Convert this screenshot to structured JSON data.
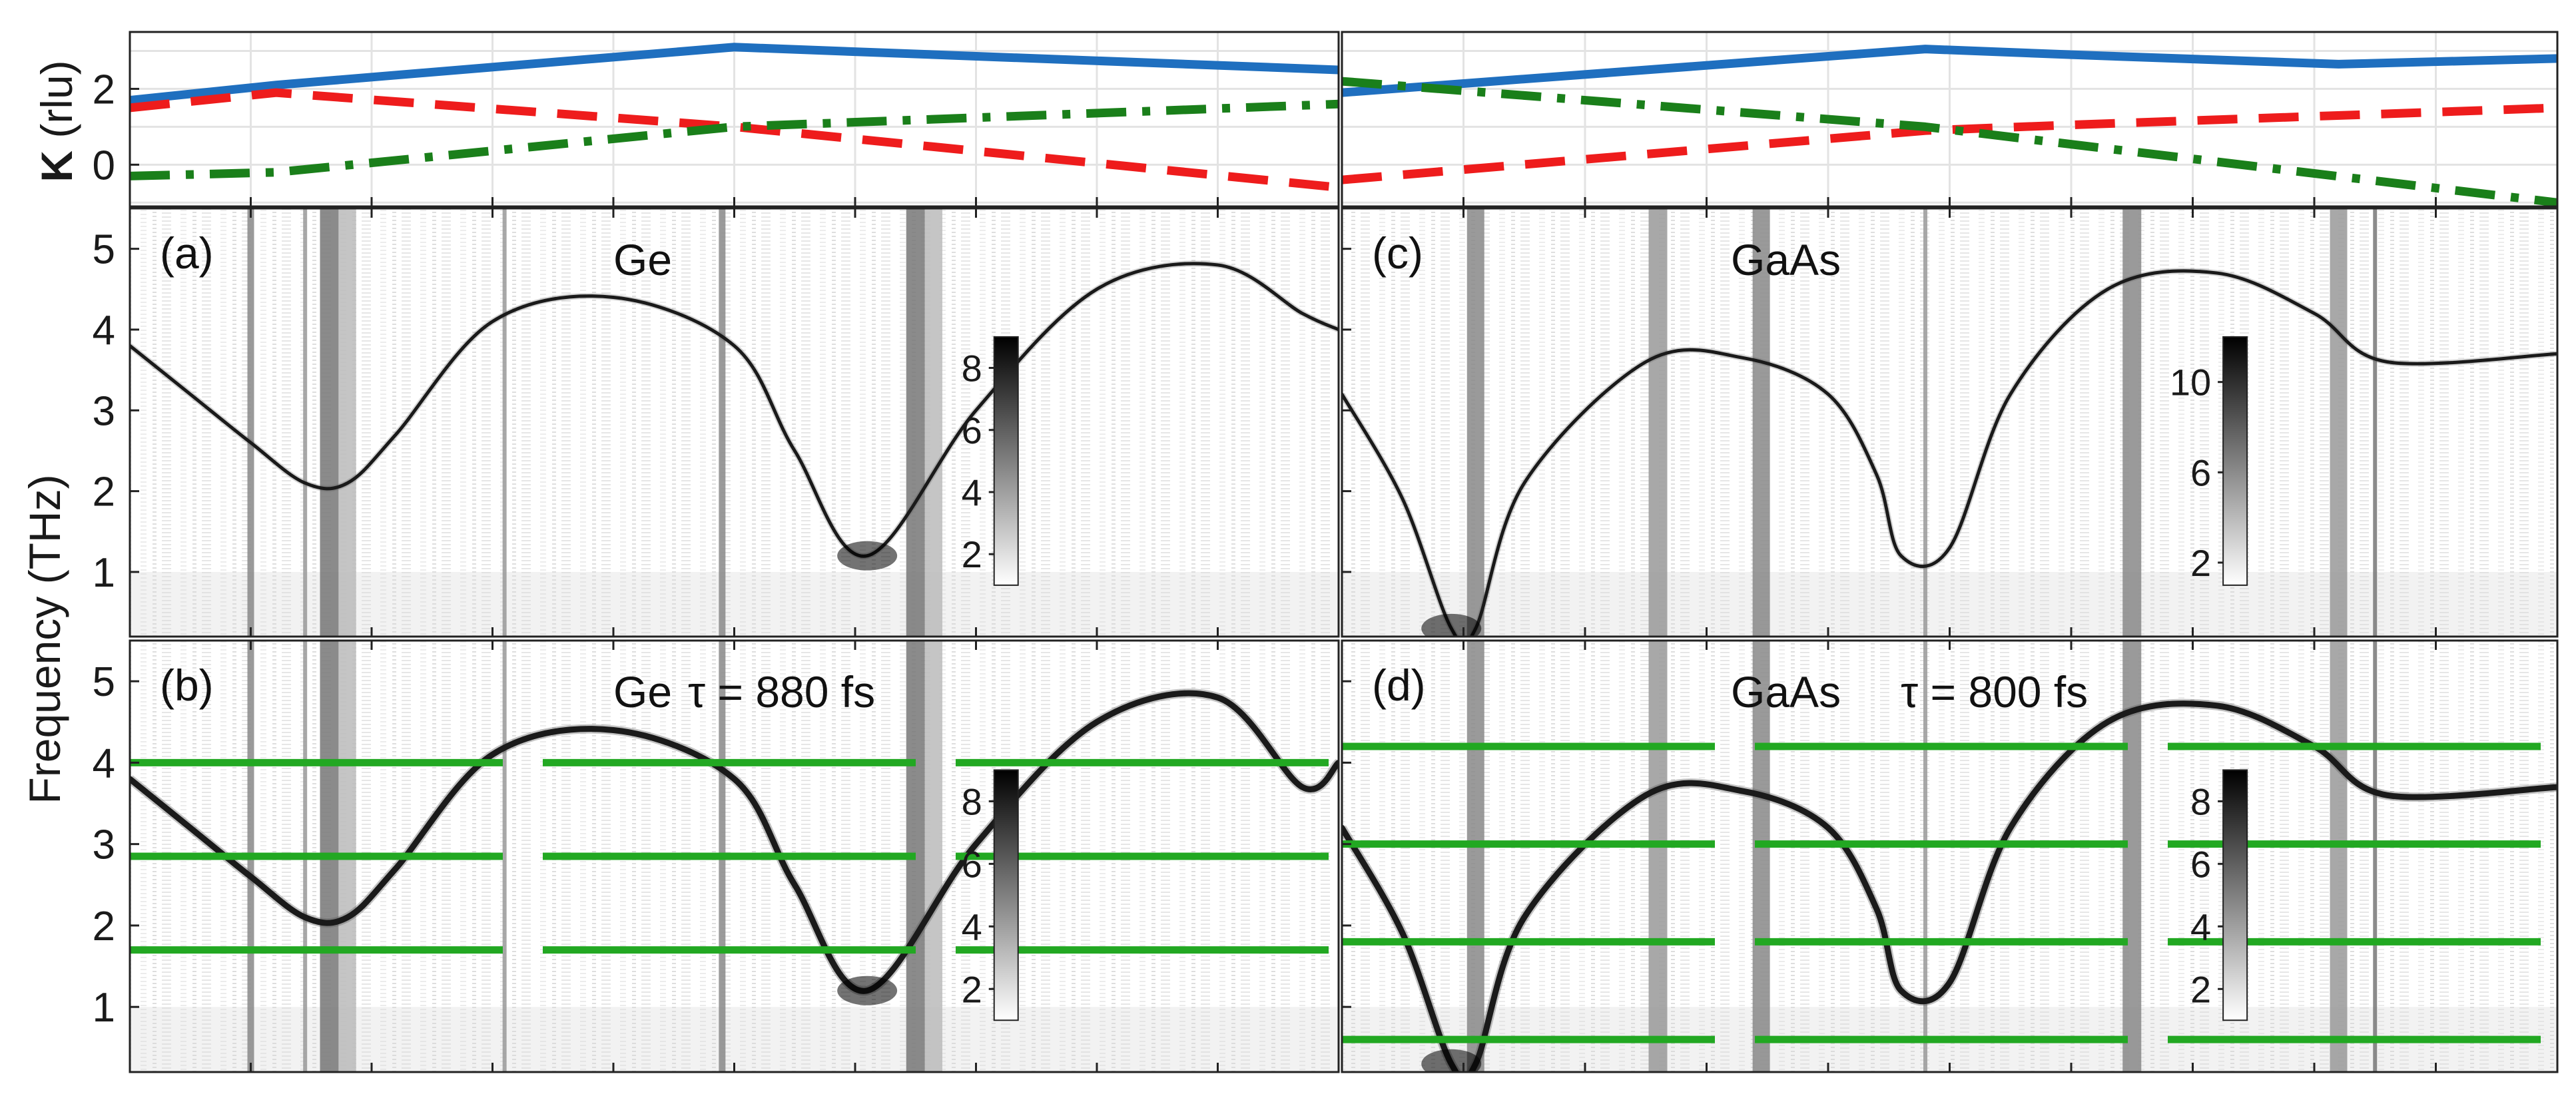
{
  "chart_data": [
    {
      "type": "line",
      "panel_id": "k-left",
      "ylabel": "K (rlu)",
      "yticks": [
        0,
        2
      ],
      "ylim": [
        -1.1,
        3.5
      ],
      "grid": true,
      "series": [
        {
          "color": "#1f6fbf",
          "style": "solid",
          "x": [
            0,
            0.121,
            0.5,
            1.0
          ],
          "y": [
            1.7,
            2.1,
            3.1,
            2.5
          ]
        },
        {
          "color": "#ee1c1c",
          "style": "dashed",
          "x": [
            0,
            0.121,
            0.5,
            1.0
          ],
          "y": [
            1.5,
            1.9,
            1.0,
            -0.6
          ]
        },
        {
          "color": "#1a7f1a",
          "style": "dashdot",
          "x": [
            0,
            0.121,
            0.5,
            1.0
          ],
          "y": [
            -0.3,
            -0.2,
            1.0,
            1.6
          ]
        }
      ]
    },
    {
      "type": "line",
      "panel_id": "k-right",
      "grid": true,
      "ylim": [
        -1.1,
        3.5
      ],
      "series": [
        {
          "color": "#1f6fbf",
          "style": "solid",
          "x": [
            0,
            0.48,
            0.6,
            0.82,
            1.0
          ],
          "y": [
            1.9,
            3.05,
            2.9,
            2.65,
            2.8
          ]
        },
        {
          "color": "#ee1c1c",
          "style": "dashed",
          "x": [
            0,
            0.48,
            0.6,
            1.0
          ],
          "y": [
            -0.4,
            0.9,
            1.05,
            1.5
          ]
        },
        {
          "color": "#1a7f1a",
          "style": "dashdot",
          "x": [
            0,
            0.48,
            1.0
          ],
          "y": [
            2.2,
            1.0,
            -1.0
          ]
        }
      ]
    },
    {
      "type": "heatmap",
      "panel_id": "a",
      "label": "(a)",
      "title": "Ge",
      "ylabel": "Frequency (THz)",
      "yticks": [
        1,
        2,
        3,
        4,
        5
      ],
      "ylim": [
        0.2,
        5.5
      ],
      "colorbar": {
        "ticks": [
          2,
          4,
          6,
          8
        ],
        "range": [
          1,
          9
        ]
      },
      "dispersion": {
        "x": [
          0,
          0.05,
          0.1,
          0.145,
          0.18,
          0.22,
          0.3,
          0.4,
          0.5,
          0.55,
          0.61,
          0.7,
          0.8,
          0.9,
          0.97,
          1.0
        ],
        "y": [
          3.8,
          3.2,
          2.6,
          2.1,
          2.1,
          2.7,
          4.1,
          4.4,
          3.8,
          2.5,
          1.2,
          3.0,
          4.5,
          4.8,
          4.2,
          4.0
        ]
      }
    },
    {
      "type": "heatmap",
      "panel_id": "b",
      "label": "(b)",
      "title": "Ge",
      "title_tau": "τ = 880 fs",
      "yticks": [
        1,
        2,
        3,
        4,
        5
      ],
      "ylim": [
        0.2,
        5.5
      ],
      "colorbar": {
        "ticks": [
          2,
          4,
          6,
          8
        ],
        "range": [
          1,
          9
        ]
      },
      "dispersion": {
        "x": [
          0,
          0.05,
          0.1,
          0.145,
          0.18,
          0.22,
          0.3,
          0.4,
          0.5,
          0.55,
          0.61,
          0.7,
          0.8,
          0.9,
          0.97,
          1.0
        ],
        "y": [
          3.8,
          3.2,
          2.6,
          2.1,
          2.1,
          2.7,
          4.1,
          4.4,
          3.8,
          2.5,
          1.2,
          3.0,
          4.5,
          4.8,
          3.7,
          4.0
        ]
      },
      "reference_lines": [
        1.7,
        2.85,
        4.0
      ]
    },
    {
      "type": "heatmap",
      "panel_id": "c",
      "label": "(c)",
      "title": "GaAs",
      "yticks": [
        1,
        2,
        3,
        4,
        5
      ],
      "ylim": [
        0.2,
        5.5
      ],
      "colorbar": {
        "ticks": [
          2,
          6,
          10
        ],
        "range": [
          1,
          12
        ]
      },
      "dispersion": {
        "x": [
          0,
          0.05,
          0.09,
          0.11,
          0.15,
          0.25,
          0.33,
          0.4,
          0.44,
          0.46,
          0.5,
          0.55,
          0.63,
          0.72,
          0.8,
          0.86,
          1.0
        ],
        "y": [
          3.2,
          1.9,
          0.3,
          0.3,
          2.1,
          3.6,
          3.65,
          3.2,
          2.2,
          1.2,
          1.3,
          3.2,
          4.5,
          4.7,
          4.2,
          3.6,
          3.7
        ]
      }
    },
    {
      "type": "heatmap",
      "panel_id": "d",
      "label": "(d)",
      "title": "GaAs",
      "title_tau": "τ = 800 fs",
      "yticks": [
        1,
        2,
        3,
        4,
        5
      ],
      "ylim": [
        0.2,
        5.5
      ],
      "colorbar": {
        "ticks": [
          2,
          4,
          6,
          8
        ],
        "range": [
          1,
          9
        ]
      },
      "dispersion": {
        "x": [
          0,
          0.05,
          0.09,
          0.11,
          0.15,
          0.25,
          0.33,
          0.4,
          0.44,
          0.46,
          0.5,
          0.55,
          0.63,
          0.72,
          0.8,
          0.86,
          1.0
        ],
        "y": [
          3.2,
          1.9,
          0.3,
          0.3,
          2.1,
          3.6,
          3.65,
          3.2,
          2.2,
          1.2,
          1.3,
          3.2,
          4.5,
          4.7,
          4.2,
          3.6,
          3.7
        ]
      },
      "reference_lines": [
        0.6,
        1.8,
        3.0,
        4.2
      ]
    }
  ]
}
